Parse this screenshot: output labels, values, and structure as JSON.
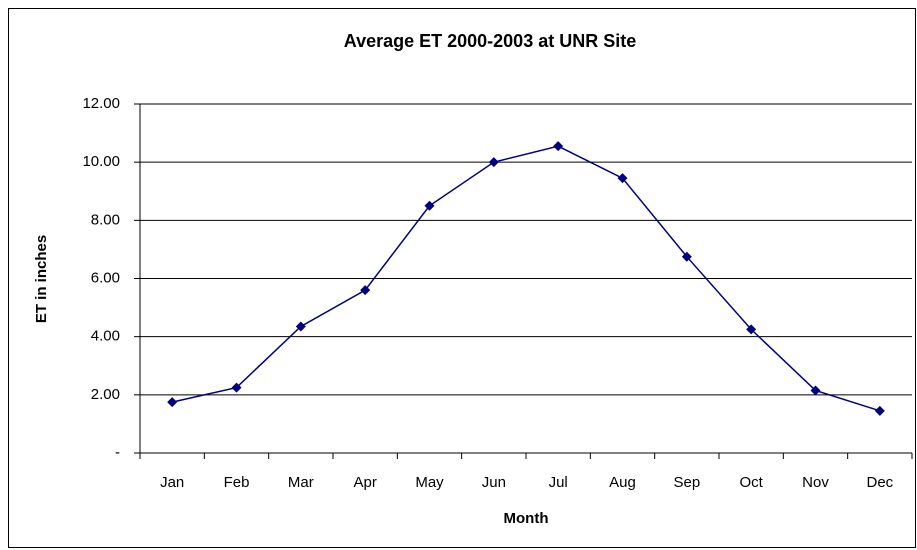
{
  "chart_data": {
    "type": "line",
    "title": "Average ET 2000-2003 at UNR Site",
    "x_label": "Month",
    "y_label": "ET in inches",
    "categories": [
      "Jan",
      "Feb",
      "Mar",
      "Apr",
      "May",
      "Jun",
      "Jul",
      "Aug",
      "Sep",
      "Oct",
      "Nov",
      "Dec"
    ],
    "series": [
      {
        "name": "ET",
        "color": "#000080",
        "values": [
          1.75,
          2.25,
          4.35,
          5.6,
          8.5,
          10.0,
          10.55,
          9.45,
          6.75,
          4.25,
          2.15,
          1.45
        ]
      }
    ],
    "ylim": [
      0,
      12
    ],
    "yticks": [
      {
        "value": 0,
        "label": "-"
      },
      {
        "value": 2,
        "label": "2.00"
      },
      {
        "value": 4,
        "label": "4.00"
      },
      {
        "value": 6,
        "label": "6.00"
      },
      {
        "value": 8,
        "label": "8.00"
      },
      {
        "value": 10,
        "label": "10.00"
      },
      {
        "value": 12,
        "label": "12.00"
      }
    ],
    "grid": true
  }
}
